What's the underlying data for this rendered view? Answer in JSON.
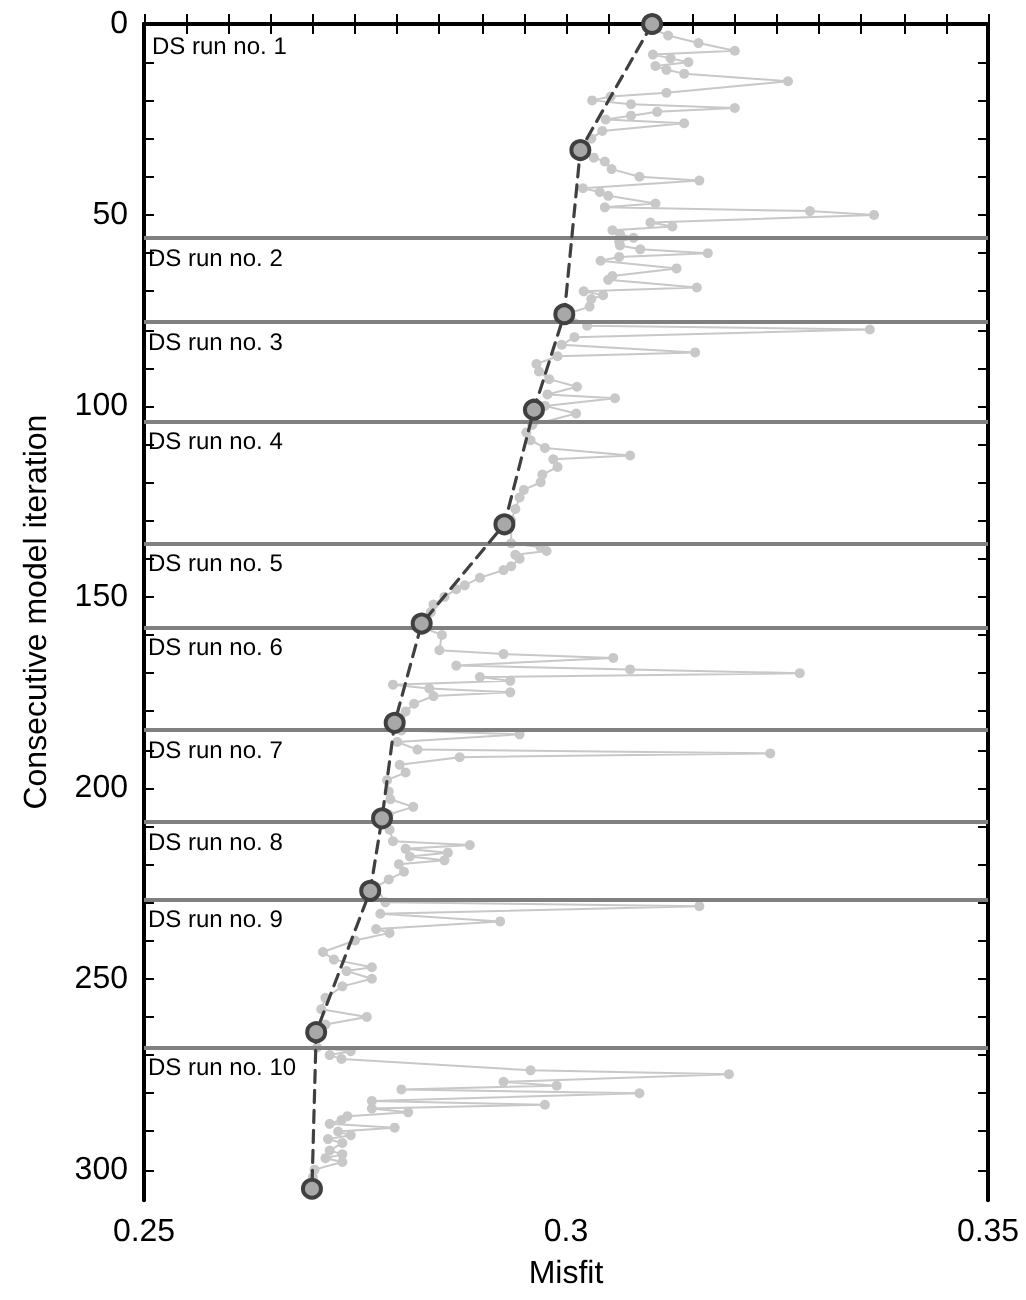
{
  "chart_data": {
    "type": "line",
    "xlabel": "Misfit",
    "ylabel": "Consecutive model iteration",
    "xlim": [
      0.25,
      0.35
    ],
    "xticks": [
      0.25,
      {
        "value": 0.255,
        "label": null
      },
      {
        "value": 0.26,
        "label": null
      },
      {
        "value": 0.265,
        "label": null
      },
      {
        "value": 0.27,
        "label": null
      },
      {
        "value": 0.275,
        "label": null
      },
      {
        "value": 0.28,
        "label": null
      },
      {
        "value": 0.285,
        "label": null
      },
      {
        "value": 0.29,
        "label": null
      },
      {
        "value": 0.295,
        "label": null
      },
      0.3,
      {
        "value": 0.305,
        "label": null
      },
      {
        "value": 0.31,
        "label": null
      },
      {
        "value": 0.315,
        "label": null
      },
      {
        "value": 0.32,
        "label": null
      },
      {
        "value": 0.325,
        "label": null
      },
      {
        "value": 0.33,
        "label": null
      },
      {
        "value": 0.335,
        "label": null
      },
      {
        "value": 0.34,
        "label": null
      },
      {
        "value": 0.345,
        "label": null
      },
      0.35
    ],
    "ylim": [
      308,
      0
    ],
    "yticks": [
      0,
      {
        "value": 10,
        "label": null
      },
      {
        "value": 20,
        "label": null
      },
      {
        "value": 30,
        "label": null
      },
      {
        "value": 40,
        "label": null
      },
      50,
      {
        "value": 60,
        "label": null
      },
      {
        "value": 70,
        "label": null
      },
      {
        "value": 80,
        "label": null
      },
      {
        "value": 90,
        "label": null
      },
      100,
      {
        "value": 110,
        "label": null
      },
      {
        "value": 120,
        "label": null
      },
      {
        "value": 130,
        "label": null
      },
      {
        "value": 140,
        "label": null
      },
      150,
      {
        "value": 160,
        "label": null
      },
      {
        "value": 170,
        "label": null
      },
      {
        "value": 180,
        "label": null
      },
      {
        "value": 190,
        "label": null
      },
      200,
      {
        "value": 210,
        "label": null
      },
      {
        "value": 220,
        "label": null
      },
      {
        "value": 230,
        "label": null
      },
      {
        "value": 240,
        "label": null
      },
      250,
      {
        "value": 260,
        "label": null
      },
      {
        "value": 270,
        "label": null
      },
      {
        "value": 280,
        "label": null
      },
      {
        "value": 290,
        "label": null
      },
      300
    ],
    "grid": false,
    "series": [
      {
        "color": "#c8c8c8",
        "marker": "circle",
        "line_style": "solid",
        "x": [
          0.31,
          0.3121,
          0.3157,
          0.32,
          0.3103,
          0.3124,
          0.3145,
          0.3106,
          0.3119,
          0.314,
          0.3263,
          0.3119,
          0.3053,
          0.3031,
          0.3077,
          0.32,
          0.3108,
          0.3077,
          0.3047,
          0.314,
          0.3043,
          0.303,
          0.302,
          0.3033,
          0.3046,
          0.3054,
          0.3087,
          0.3158,
          0.302,
          0.304,
          0.305,
          0.3106,
          0.3046,
          0.3289,
          0.3365,
          0.31,
          0.3126,
          0.3055,
          0.3064,
          0.308,
          0.3063,
          0.3064,
          0.3088,
          0.3168,
          0.3063,
          0.3041,
          0.3131,
          0.3055,
          0.305,
          0.3155,
          0.3021,
          0.3044,
          0.303,
          0.3028,
          0.3,
          0.3025,
          0.336,
          0.301,
          0.2995,
          0.3153,
          0.299,
          0.2965,
          0.2968,
          0.298,
          0.3013,
          0.2978,
          0.3058,
          0.2975,
          0.3012,
          0.296,
          0.2953,
          0.2958,
          0.2975,
          0.3076,
          0.2985,
          0.299,
          0.2972,
          0.297,
          0.295,
          0.2945,
          0.294,
          0.2935,
          0.2935,
          0.297,
          0.2977,
          0.294,
          0.2945,
          0.2935,
          0.2926,
          0.2898,
          0.288,
          0.287,
          0.2856,
          0.2843,
          0.284,
          0.2835,
          0.283,
          0.2853,
          0.285,
          0.2926,
          0.3056,
          0.287,
          0.3076,
          0.3277,
          0.2898,
          0.2934,
          0.2795,
          0.2838,
          0.2934,
          0.2843,
          0.282,
          0.281,
          0.2805,
          0.2945,
          0.28,
          0.2824,
          0.3242,
          0.2874,
          0.2803,
          0.281,
          0.2788,
          0.279,
          0.2792,
          0.2819,
          0.279,
          0.2791,
          0.2795,
          0.2886,
          0.281,
          0.286,
          0.2815,
          0.2856,
          0.2802,
          0.2808,
          0.279,
          0.2775,
          0.2786,
          0.3158,
          0.278,
          0.2922,
          0.2775,
          0.2791,
          0.275,
          0.2712,
          0.2725,
          0.277,
          0.274,
          0.277,
          0.2735,
          0.2715,
          0.271,
          0.2764,
          0.2715,
          0.2705,
          0.2745,
          0.272,
          0.2734,
          0.2958,
          0.3193,
          0.2926,
          0.2989,
          0.2805,
          0.3087,
          0.277,
          0.2975,
          0.277,
          0.2813,
          0.2741,
          0.2734,
          0.272,
          0.2797,
          0.273,
          0.2745,
          0.2718,
          0.2735,
          0.272,
          0.2735,
          0.2715,
          0.2735,
          0.2702,
          0.27
        ],
        "values": [
          1,
          3,
          5,
          7,
          8,
          9,
          10,
          11,
          12,
          13,
          15,
          18,
          19,
          20,
          21,
          22,
          23,
          24,
          25,
          26,
          28,
          30,
          33,
          35,
          36,
          38,
          40,
          41,
          43,
          44,
          45,
          47,
          48,
          49,
          50,
          52,
          53,
          54,
          55,
          56,
          57,
          58,
          59,
          60,
          61,
          62,
          64,
          66,
          67,
          69,
          70,
          71,
          72,
          74,
          76,
          79,
          80,
          82,
          84,
          86,
          87,
          89,
          91,
          93,
          95,
          97,
          98,
          100,
          102,
          105,
          107,
          109,
          111,
          113,
          114,
          116,
          118,
          120,
          122,
          124,
          127,
          130,
          136,
          137,
          138,
          139,
          140,
          142,
          143,
          145,
          147,
          148,
          150,
          152,
          154,
          156,
          158,
          160,
          164,
          165,
          166,
          168,
          169,
          170,
          171,
          172,
          173,
          174,
          175,
          176,
          178,
          180,
          185,
          186,
          188,
          190,
          191,
          192,
          194,
          196,
          198,
          201,
          203,
          205,
          207,
          211,
          214,
          215,
          216,
          217,
          218,
          219,
          220,
          222,
          224,
          226,
          230,
          231,
          233,
          235,
          237,
          238,
          240,
          243,
          245,
          247,
          248,
          250,
          252,
          255,
          258,
          260,
          262,
          268,
          269,
          270,
          271,
          274,
          275,
          277,
          278,
          279,
          280,
          282,
          283,
          284,
          285,
          286,
          287,
          288,
          289,
          290,
          291,
          292,
          293,
          295,
          296,
          297,
          298,
          300,
          302
        ]
      },
      {
        "color": "#404040",
        "marker": "circle",
        "line_style": "dashed",
        "x": [
          0.3102,
          0.3017,
          0.2998,
          0.2962,
          0.2927,
          0.2829,
          0.2797,
          0.2782,
          0.2768,
          0.2704,
          0.2699
        ],
        "values": [
          0,
          33,
          76,
          101,
          131,
          157,
          183,
          208,
          227,
          264,
          305
        ]
      }
    ],
    "ref_lines": [
      {
        "axis": "y",
        "value": 56,
        "label": "DS run no. 2",
        "color": "#808080"
      },
      {
        "axis": "y",
        "value": 78,
        "label": "DS run no. 3",
        "color": "#808080"
      },
      {
        "axis": "y",
        "value": 104,
        "label": "DS run no. 4",
        "color": "#808080"
      },
      {
        "axis": "y",
        "value": 136,
        "label": "DS run no. 5",
        "color": "#808080"
      },
      {
        "axis": "y",
        "value": 158,
        "label": "DS run no. 6",
        "color": "#808080"
      },
      {
        "axis": "y",
        "value": 185,
        "label": "DS run no. 7",
        "color": "#808080"
      },
      {
        "axis": "y",
        "value": 209,
        "label": "DS run no. 8",
        "color": "#808080"
      },
      {
        "axis": "y",
        "value": 229,
        "label": "DS run no. 9",
        "color": "#808080"
      },
      {
        "axis": "y",
        "value": 268,
        "label": "DS run no. 10",
        "color": "#808080"
      }
    ],
    "annotations": [
      "DS run no. 1"
    ]
  }
}
